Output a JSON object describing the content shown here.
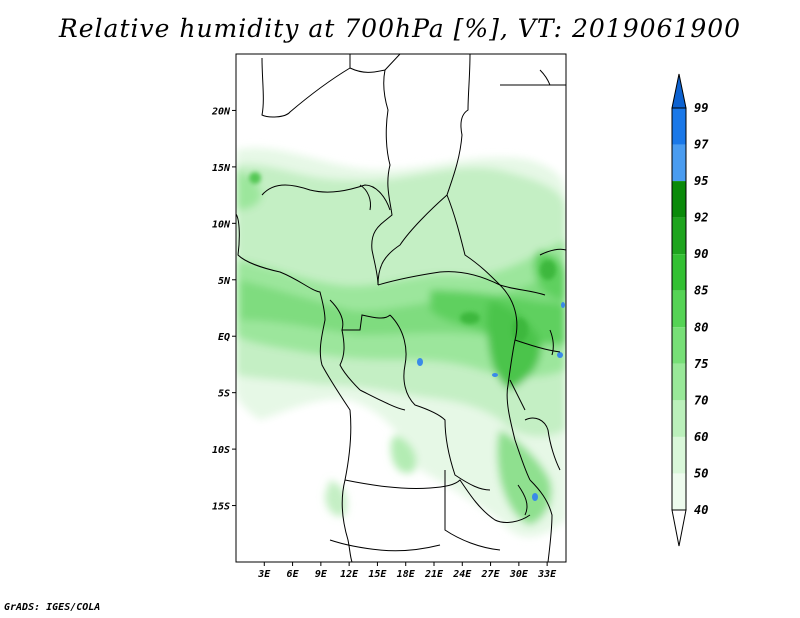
{
  "title": "Relative humidity at 700hPa [%], VT: 2019061900",
  "footer": "GrADS: IGES/COLA",
  "map": {
    "lon_range": [
      0,
      35
    ],
    "lat_range": [
      -20,
      25
    ],
    "xticks": [
      "3E",
      "6E",
      "9E",
      "12E",
      "15E",
      "18E",
      "21E",
      "24E",
      "27E",
      "30E",
      "33E"
    ],
    "yticks": [
      "20N",
      "15N",
      "10N",
      "5N",
      "EQ",
      "5S",
      "10S",
      "15S"
    ]
  },
  "colorbar": {
    "levels": [
      "99",
      "97",
      "95",
      "92",
      "90",
      "85",
      "80",
      "75",
      "70",
      "60",
      "50",
      "40"
    ],
    "colors": [
      "#0d62d0",
      "#1a78e8",
      "#4a9cf0",
      "#0a8a0a",
      "#1ea41e",
      "#33c033",
      "#55d355",
      "#77df77",
      "#99e899",
      "#bbf0bb",
      "#d9f7d9",
      "#eefbee",
      "#ffffff"
    ]
  }
}
